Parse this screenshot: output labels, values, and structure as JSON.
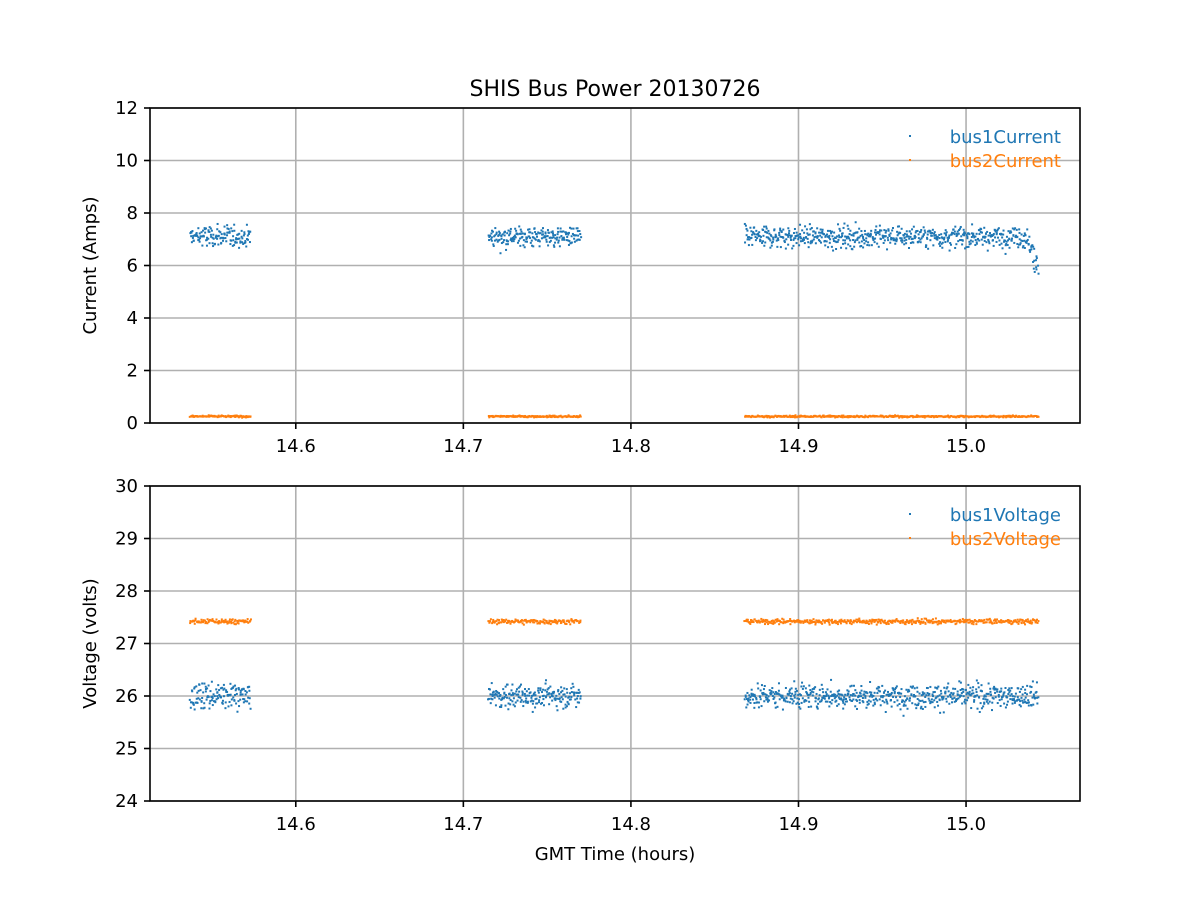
{
  "colors": {
    "series1": "#1f77b4",
    "series2": "#ff7f0e",
    "grid": "#b0b0b0",
    "axis": "#000000"
  },
  "chart_data": [
    {
      "type": "scatter",
      "title": "SHIS Bus Power 20130726",
      "xlabel": "",
      "ylabel": "Current (Amps)",
      "xlim": [
        14.513,
        15.068
      ],
      "ylim": [
        0,
        12
      ],
      "xticks": [
        14.6,
        14.7,
        14.8,
        14.9,
        15.0
      ],
      "xtick_labels": [
        "14.6",
        "14.7",
        "14.8",
        "14.9",
        "15.0"
      ],
      "yticks": [
        0,
        2,
        4,
        6,
        8,
        10,
        12
      ],
      "ytick_labels": [
        "0",
        "2",
        "4",
        "6",
        "8",
        "10",
        "12"
      ],
      "grid": true,
      "legend": "upper right",
      "x_segments": [
        [
          14.537,
          14.573
        ],
        [
          14.715,
          14.77
        ],
        [
          14.868,
          15.043
        ]
      ],
      "series": [
        {
          "name": "bus1Current",
          "color": "#1f77b4",
          "mean": 7.1,
          "spread": 0.35,
          "end_drop_to": 5.9,
          "points": [
            [
              14.537,
              6.6
            ],
            [
              14.548,
              7.2
            ],
            [
              14.56,
              7.0
            ],
            [
              14.572,
              7.1
            ],
            [
              14.716,
              7.6
            ],
            [
              14.74,
              7.0
            ],
            [
              14.769,
              6.9
            ],
            [
              14.868,
              7.3
            ],
            [
              14.9,
              7.1
            ],
            [
              14.95,
              7.2
            ],
            [
              15.0,
              7.4
            ],
            [
              15.03,
              7.4
            ],
            [
              15.038,
              6.3
            ],
            [
              15.043,
              5.8
            ]
          ]
        },
        {
          "name": "bus2Current",
          "color": "#ff7f0e",
          "mean": 0.25,
          "spread": 0.03,
          "points": [
            [
              14.537,
              0.25
            ],
            [
              14.573,
              0.25
            ],
            [
              14.715,
              0.25
            ],
            [
              14.77,
              0.25
            ],
            [
              14.868,
              0.25
            ],
            [
              15.043,
              0.25
            ]
          ]
        }
      ]
    },
    {
      "type": "scatter",
      "title": "",
      "xlabel": "GMT Time (hours)",
      "ylabel": "Voltage (volts)",
      "xlim": [
        14.513,
        15.068
      ],
      "ylim": [
        24,
        30
      ],
      "xticks": [
        14.6,
        14.7,
        14.8,
        14.9,
        15.0
      ],
      "xtick_labels": [
        "14.6",
        "14.7",
        "14.8",
        "14.9",
        "15.0"
      ],
      "yticks": [
        24,
        25,
        26,
        27,
        28,
        29,
        30
      ],
      "ytick_labels": [
        "24",
        "25",
        "26",
        "27",
        "28",
        "29",
        "30"
      ],
      "grid": true,
      "legend": "upper right",
      "x_segments": [
        [
          14.537,
          14.573
        ],
        [
          14.715,
          14.77
        ],
        [
          14.868,
          15.043
        ]
      ],
      "series": [
        {
          "name": "bus1Voltage",
          "color": "#1f77b4",
          "mean": 26.0,
          "spread": 0.2,
          "points": [
            [
              14.537,
              26.2
            ],
            [
              14.56,
              26.0
            ],
            [
              14.573,
              25.9
            ],
            [
              14.715,
              26.0
            ],
            [
              14.745,
              26.0
            ],
            [
              14.77,
              25.9
            ],
            [
              14.868,
              26.0
            ],
            [
              14.89,
              25.8
            ],
            [
              14.95,
              26.0
            ],
            [
              15.0,
              25.9
            ],
            [
              15.04,
              26.5
            ]
          ]
        },
        {
          "name": "bus2Voltage",
          "color": "#ff7f0e",
          "mean": 27.42,
          "spread": 0.04,
          "points": [
            [
              14.537,
              27.45
            ],
            [
              14.573,
              27.42
            ],
            [
              14.715,
              27.4
            ],
            [
              14.77,
              27.42
            ],
            [
              14.868,
              27.38
            ],
            [
              15.043,
              27.5
            ]
          ]
        }
      ]
    }
  ]
}
